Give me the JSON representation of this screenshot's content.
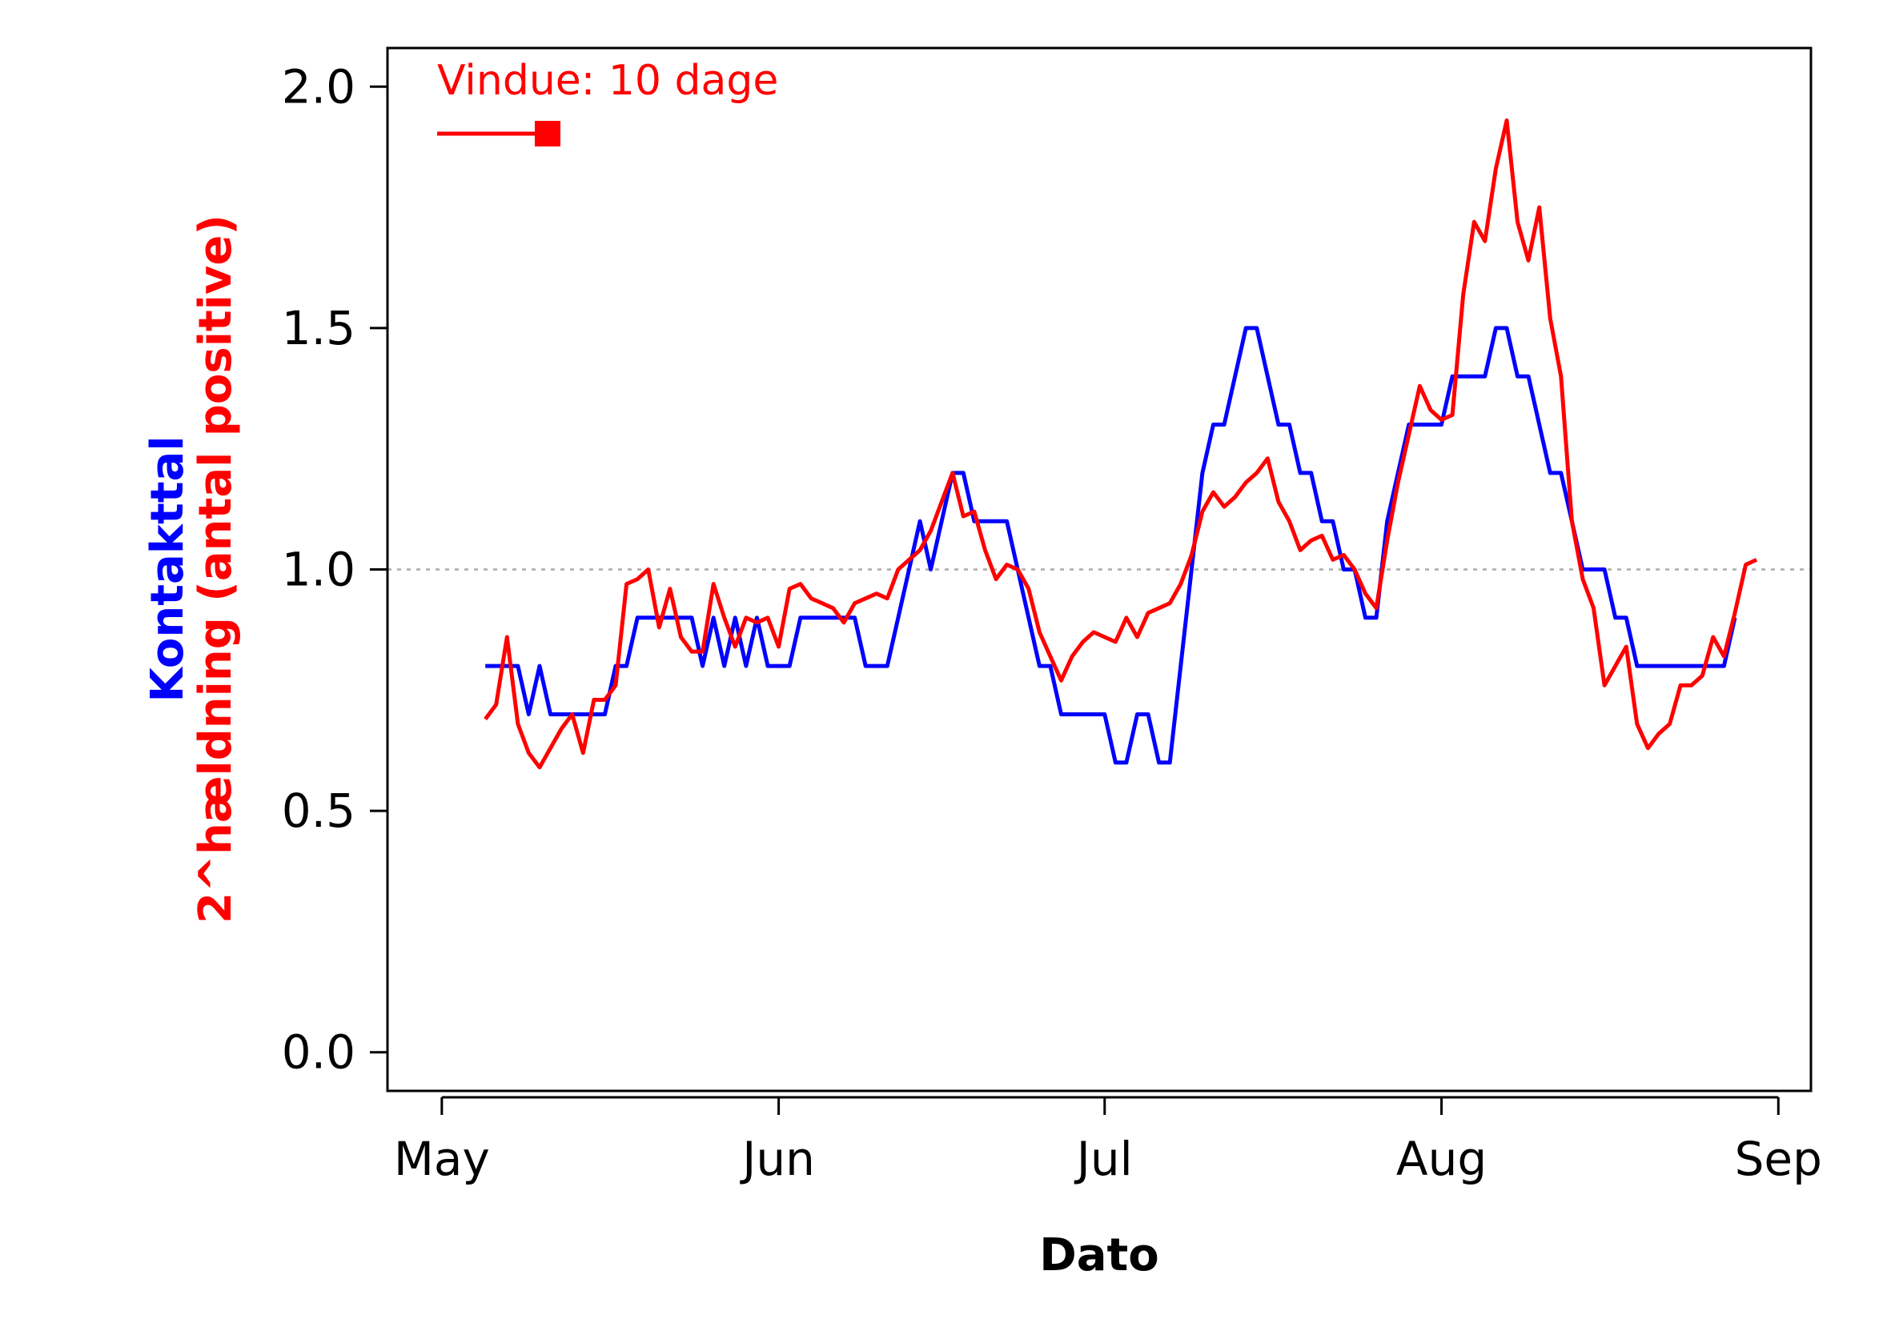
{
  "chart_data": {
    "type": "line",
    "title": "",
    "xlabel": "Dato",
    "ylabel_parts": [
      {
        "text": "Kontakttal",
        "color": "#0000ff"
      },
      {
        "text": "2^hældning (antal positive)",
        "color": "#ff0000"
      }
    ],
    "x_ticks": [
      {
        "date": "2020-05-01",
        "label": "May"
      },
      {
        "date": "2020-06-01",
        "label": "Jun"
      },
      {
        "date": "2020-07-01",
        "label": "Jul"
      },
      {
        "date": "2020-08-01",
        "label": "Aug"
      },
      {
        "date": "2020-09-01",
        "label": "Sep"
      }
    ],
    "y_ticks": [
      "0.0",
      "0.5",
      "1.0",
      "1.5",
      "2.0"
    ],
    "ylim": [
      -0.08,
      2.08
    ],
    "xlim": [
      "2020-04-26",
      "2020-09-04"
    ],
    "grid": false,
    "reference_line": {
      "y": 1.0,
      "color": "#aaaaaa",
      "style": "dotted"
    },
    "legend": {
      "text": "Vindue: 10 dage",
      "color": "#ff0000",
      "position": "top-left"
    },
    "series": [
      {
        "color": "#0000ff",
        "points": [
          [
            "2020-05-05",
            0.8
          ],
          [
            "2020-05-08",
            0.8
          ],
          [
            "2020-05-09",
            0.7
          ],
          [
            "2020-05-10",
            0.8
          ],
          [
            "2020-05-11",
            0.7
          ],
          [
            "2020-05-15",
            0.7
          ],
          [
            "2020-05-16",
            0.7
          ],
          [
            "2020-05-17",
            0.8
          ],
          [
            "2020-05-18",
            0.8
          ],
          [
            "2020-05-19",
            0.9
          ],
          [
            "2020-05-24",
            0.9
          ],
          [
            "2020-05-25",
            0.8
          ],
          [
            "2020-05-26",
            0.9
          ],
          [
            "2020-05-27",
            0.8
          ],
          [
            "2020-05-28",
            0.9
          ],
          [
            "2020-05-29",
            0.8
          ],
          [
            "2020-05-30",
            0.9
          ],
          [
            "2020-05-31",
            0.8
          ],
          [
            "2020-06-02",
            0.8
          ],
          [
            "2020-06-03",
            0.9
          ],
          [
            "2020-06-08",
            0.9
          ],
          [
            "2020-06-09",
            0.8
          ],
          [
            "2020-06-11",
            0.8
          ],
          [
            "2020-06-14",
            1.1
          ],
          [
            "2020-06-15",
            1.0
          ],
          [
            "2020-06-17",
            1.2
          ],
          [
            "2020-06-18",
            1.2
          ],
          [
            "2020-06-19",
            1.1
          ],
          [
            "2020-06-22",
            1.1
          ],
          [
            "2020-06-25",
            0.8
          ],
          [
            "2020-06-26",
            0.8
          ],
          [
            "2020-06-27",
            0.7
          ],
          [
            "2020-06-30",
            0.7
          ],
          [
            "2020-07-01",
            0.7
          ],
          [
            "2020-07-02",
            0.6
          ],
          [
            "2020-07-03",
            0.6
          ],
          [
            "2020-07-04",
            0.7
          ],
          [
            "2020-07-05",
            0.7
          ],
          [
            "2020-07-06",
            0.6
          ],
          [
            "2020-07-07",
            0.6
          ],
          [
            "2020-07-10",
            1.2
          ],
          [
            "2020-07-11",
            1.3
          ],
          [
            "2020-07-12",
            1.3
          ],
          [
            "2020-07-14",
            1.5
          ],
          [
            "2020-07-15",
            1.5
          ],
          [
            "2020-07-17",
            1.3
          ],
          [
            "2020-07-18",
            1.3
          ],
          [
            "2020-07-19",
            1.2
          ],
          [
            "2020-07-20",
            1.2
          ],
          [
            "2020-07-21",
            1.1
          ],
          [
            "2020-07-22",
            1.1
          ],
          [
            "2020-07-23",
            1.0
          ],
          [
            "2020-07-24",
            1.0
          ],
          [
            "2020-07-25",
            0.9
          ],
          [
            "2020-07-26",
            0.9
          ],
          [
            "2020-07-27",
            1.1
          ],
          [
            "2020-07-29",
            1.3
          ],
          [
            "2020-08-01",
            1.3
          ],
          [
            "2020-08-02",
            1.4
          ],
          [
            "2020-08-05",
            1.4
          ],
          [
            "2020-08-06",
            1.5
          ],
          [
            "2020-08-07",
            1.5
          ],
          [
            "2020-08-08",
            1.4
          ],
          [
            "2020-08-09",
            1.4
          ],
          [
            "2020-08-11",
            1.2
          ],
          [
            "2020-08-12",
            1.2
          ],
          [
            "2020-08-14",
            1.0
          ],
          [
            "2020-08-16",
            1.0
          ],
          [
            "2020-08-17",
            0.9
          ],
          [
            "2020-08-18",
            0.9
          ],
          [
            "2020-08-19",
            0.8
          ],
          [
            "2020-08-27",
            0.8
          ],
          [
            "2020-08-28",
            0.9
          ]
        ]
      },
      {
        "color": "#ff0000",
        "points": [
          [
            "2020-05-05",
            0.69
          ],
          [
            "2020-05-06",
            0.72
          ],
          [
            "2020-05-07",
            0.86
          ],
          [
            "2020-05-08",
            0.68
          ],
          [
            "2020-05-09",
            0.62
          ],
          [
            "2020-05-10",
            0.59
          ],
          [
            "2020-05-11",
            0.63
          ],
          [
            "2020-05-12",
            0.67
          ],
          [
            "2020-05-13",
            0.7
          ],
          [
            "2020-05-14",
            0.62
          ],
          [
            "2020-05-15",
            0.73
          ],
          [
            "2020-05-16",
            0.73
          ],
          [
            "2020-05-17",
            0.76
          ],
          [
            "2020-05-18",
            0.97
          ],
          [
            "2020-05-19",
            0.98
          ],
          [
            "2020-05-20",
            1.0
          ],
          [
            "2020-05-21",
            0.88
          ],
          [
            "2020-05-22",
            0.96
          ],
          [
            "2020-05-23",
            0.86
          ],
          [
            "2020-05-24",
            0.83
          ],
          [
            "2020-05-25",
            0.83
          ],
          [
            "2020-05-26",
            0.97
          ],
          [
            "2020-05-27",
            0.9
          ],
          [
            "2020-05-28",
            0.84
          ],
          [
            "2020-05-29",
            0.9
          ],
          [
            "2020-05-30",
            0.89
          ],
          [
            "2020-05-31",
            0.9
          ],
          [
            "2020-06-01",
            0.84
          ],
          [
            "2020-06-02",
            0.96
          ],
          [
            "2020-06-03",
            0.97
          ],
          [
            "2020-06-04",
            0.94
          ],
          [
            "2020-06-05",
            0.93
          ],
          [
            "2020-06-06",
            0.92
          ],
          [
            "2020-06-07",
            0.89
          ],
          [
            "2020-06-08",
            0.93
          ],
          [
            "2020-06-09",
            0.94
          ],
          [
            "2020-06-10",
            0.95
          ],
          [
            "2020-06-11",
            0.94
          ],
          [
            "2020-06-12",
            1.0
          ],
          [
            "2020-06-13",
            1.02
          ],
          [
            "2020-06-14",
            1.04
          ],
          [
            "2020-06-15",
            1.08
          ],
          [
            "2020-06-16",
            1.14
          ],
          [
            "2020-06-17",
            1.2
          ],
          [
            "2020-06-18",
            1.11
          ],
          [
            "2020-06-19",
            1.12
          ],
          [
            "2020-06-20",
            1.04
          ],
          [
            "2020-06-21",
            0.98
          ],
          [
            "2020-06-22",
            1.01
          ],
          [
            "2020-06-23",
            1.0
          ],
          [
            "2020-06-24",
            0.96
          ],
          [
            "2020-06-25",
            0.87
          ],
          [
            "2020-06-26",
            0.82
          ],
          [
            "2020-06-27",
            0.77
          ],
          [
            "2020-06-28",
            0.82
          ],
          [
            "2020-06-29",
            0.85
          ],
          [
            "2020-06-30",
            0.87
          ],
          [
            "2020-07-01",
            0.86
          ],
          [
            "2020-07-02",
            0.85
          ],
          [
            "2020-07-03",
            0.9
          ],
          [
            "2020-07-04",
            0.86
          ],
          [
            "2020-07-05",
            0.91
          ],
          [
            "2020-07-06",
            0.92
          ],
          [
            "2020-07-07",
            0.93
          ],
          [
            "2020-07-08",
            0.97
          ],
          [
            "2020-07-09",
            1.03
          ],
          [
            "2020-07-10",
            1.12
          ],
          [
            "2020-07-11",
            1.16
          ],
          [
            "2020-07-12",
            1.13
          ],
          [
            "2020-07-13",
            1.15
          ],
          [
            "2020-07-14",
            1.18
          ],
          [
            "2020-07-15",
            1.2
          ],
          [
            "2020-07-16",
            1.23
          ],
          [
            "2020-07-17",
            1.14
          ],
          [
            "2020-07-18",
            1.1
          ],
          [
            "2020-07-19",
            1.04
          ],
          [
            "2020-07-20",
            1.06
          ],
          [
            "2020-07-21",
            1.07
          ],
          [
            "2020-07-22",
            1.02
          ],
          [
            "2020-07-23",
            1.03
          ],
          [
            "2020-07-24",
            1.0
          ],
          [
            "2020-07-25",
            0.95
          ],
          [
            "2020-07-26",
            0.92
          ],
          [
            "2020-07-27",
            1.06
          ],
          [
            "2020-07-28",
            1.18
          ],
          [
            "2020-07-29",
            1.28
          ],
          [
            "2020-07-30",
            1.38
          ],
          [
            "2020-07-31",
            1.33
          ],
          [
            "2020-08-01",
            1.31
          ],
          [
            "2020-08-02",
            1.32
          ],
          [
            "2020-08-03",
            1.57
          ],
          [
            "2020-08-04",
            1.72
          ],
          [
            "2020-08-05",
            1.68
          ],
          [
            "2020-08-06",
            1.83
          ],
          [
            "2020-08-07",
            1.93
          ],
          [
            "2020-08-08",
            1.72
          ],
          [
            "2020-08-09",
            1.64
          ],
          [
            "2020-08-10",
            1.75
          ],
          [
            "2020-08-11",
            1.52
          ],
          [
            "2020-08-12",
            1.4
          ],
          [
            "2020-08-13",
            1.1
          ],
          [
            "2020-08-14",
            0.98
          ],
          [
            "2020-08-15",
            0.92
          ],
          [
            "2020-08-16",
            0.76
          ],
          [
            "2020-08-17",
            0.8
          ],
          [
            "2020-08-18",
            0.84
          ],
          [
            "2020-08-19",
            0.68
          ],
          [
            "2020-08-20",
            0.63
          ],
          [
            "2020-08-21",
            0.66
          ],
          [
            "2020-08-22",
            0.68
          ],
          [
            "2020-08-23",
            0.76
          ],
          [
            "2020-08-24",
            0.76
          ],
          [
            "2020-08-25",
            0.78
          ],
          [
            "2020-08-26",
            0.86
          ],
          [
            "2020-08-27",
            0.82
          ],
          [
            "2020-08-28",
            0.91
          ],
          [
            "2020-08-29",
            1.01
          ],
          [
            "2020-08-30",
            1.02
          ]
        ]
      }
    ]
  }
}
